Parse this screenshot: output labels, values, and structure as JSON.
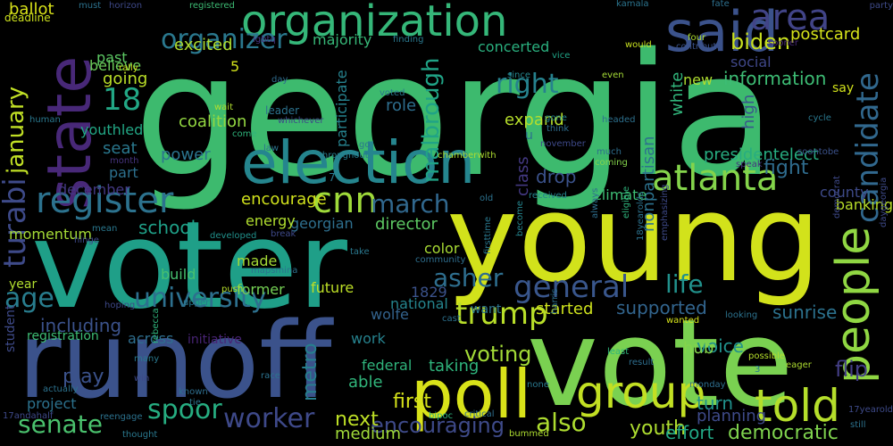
{
  "words": [
    {
      "text": "georgia",
      "color": "#3dba6e",
      "vertical": false
    },
    {
      "text": "young",
      "color": "#d2e21b",
      "vertical": false
    },
    {
      "text": "voter",
      "color": "#1f9f88",
      "vertical": false
    },
    {
      "text": "vote",
      "color": "#7ad151",
      "vertical": false
    },
    {
      "text": "runoff",
      "color": "#3b528b",
      "vertical": false
    },
    {
      "text": "election",
      "color": "#25858e",
      "vertical": false
    },
    {
      "text": "poll",
      "color": "#d8e219",
      "vertical": false
    },
    {
      "text": "organization",
      "color": "#35b779",
      "vertical": false
    },
    {
      "text": "state",
      "color": "#482878",
      "vertical": true
    },
    {
      "text": "said",
      "color": "#3b528b",
      "vertical": false
    },
    {
      "text": "group",
      "color": "#c2df23",
      "vertical": false
    },
    {
      "text": "told",
      "color": "#b5de2b",
      "vertical": false
    },
    {
      "text": "people",
      "color": "#90d743",
      "vertical": true
    },
    {
      "text": "candidate",
      "color": "#31688e",
      "vertical": true
    },
    {
      "text": "atlanta",
      "color": "#84d44b",
      "vertical": false
    },
    {
      "text": "area",
      "color": "#414487",
      "vertical": false
    },
    {
      "text": "register",
      "color": "#2c728e",
      "vertical": false
    },
    {
      "text": "cnn",
      "color": "#9fda3a",
      "vertical": false
    },
    {
      "text": "general",
      "color": "#39568c",
      "vertical": false
    },
    {
      "text": "turabi",
      "color": "#3e4a89",
      "vertical": true
    },
    {
      "text": "trump",
      "color": "#b8de29",
      "vertical": false
    },
    {
      "text": "university",
      "color": "#2d708e",
      "vertical": false
    },
    {
      "text": "worker",
      "color": "#3e4989",
      "vertical": false
    },
    {
      "text": "spoor",
      "color": "#26ad81",
      "vertical": false
    },
    {
      "text": "senate",
      "color": "#4ac16d",
      "vertical": false
    },
    {
      "text": "age",
      "color": "#287d8e",
      "vertical": false
    },
    {
      "text": "right",
      "color": "#26828e",
      "vertical": false
    },
    {
      "text": "organizer",
      "color": "#2a788e",
      "vertical": false
    },
    {
      "text": "life",
      "color": "#21918c",
      "vertical": false
    },
    {
      "text": "also",
      "color": "#addc30",
      "vertical": false
    },
    {
      "text": "march",
      "color": "#31688e",
      "vertical": false
    },
    {
      "text": "biden",
      "color": "#c8e020",
      "vertical": false
    },
    {
      "text": "18",
      "color": "#22a785",
      "vertical": false
    },
    {
      "text": "january",
      "color": "#c0df25",
      "vertical": true
    },
    {
      "text": "malbrough",
      "color": "#20a386",
      "vertical": true
    },
    {
      "text": "asher",
      "color": "#2e6e8e",
      "vertical": false
    },
    {
      "text": "voting",
      "color": "#a2da37",
      "vertical": false
    },
    {
      "text": "encouraging",
      "color": "#3e4a89",
      "vertical": false
    },
    {
      "text": "postcard",
      "color": "#d5e21a",
      "vertical": false
    },
    {
      "text": "information",
      "color": "#3dbc74",
      "vertical": false
    },
    {
      "text": "sunrise",
      "color": "#2c728e",
      "vertical": false
    },
    {
      "text": "supported",
      "color": "#32658e",
      "vertical": false
    },
    {
      "text": "first",
      "color": "#d5e21a",
      "vertical": false
    },
    {
      "text": "next",
      "color": "#bddf26",
      "vertical": false
    },
    {
      "text": "youth",
      "color": "#addc30",
      "vertical": false
    },
    {
      "text": "flip",
      "color": "#433e85",
      "vertical": false
    },
    {
      "text": "effort",
      "color": "#22a785",
      "vertical": false
    },
    {
      "text": "democratic",
      "color": "#7fd34e",
      "vertical": false
    },
    {
      "text": "including",
      "color": "#3b528b",
      "vertical": false
    },
    {
      "text": "started",
      "color": "#cde11d",
      "vertical": false
    },
    {
      "text": "fight",
      "color": "#2f6c8e",
      "vertical": false
    },
    {
      "text": "voice",
      "color": "#21918c",
      "vertical": false
    },
    {
      "text": "turn",
      "color": "#20928c",
      "vertical": false
    },
    {
      "text": "metro",
      "color": "#277f8e",
      "vertical": true
    },
    {
      "text": "able",
      "color": "#31b57b",
      "vertical": false
    },
    {
      "text": "taking",
      "color": "#2fb47c",
      "vertical": false
    },
    {
      "text": "play",
      "color": "#3b528b",
      "vertical": false
    },
    {
      "text": "project",
      "color": "#2c728e",
      "vertical": false
    },
    {
      "text": "medium",
      "color": "#a0da39",
      "vertical": false
    },
    {
      "text": "planning",
      "color": "#3e4a89",
      "vertical": false
    },
    {
      "text": "banking",
      "color": "#b8de29",
      "vertical": false
    },
    {
      "text": "encourage",
      "color": "#d0e11c",
      "vertical": false
    },
    {
      "text": "georgian",
      "color": "#2e6f8e",
      "vertical": false
    },
    {
      "text": "director",
      "color": "#5cc863",
      "vertical": false
    },
    {
      "text": "energy",
      "color": "#b0dd2f",
      "vertical": false
    },
    {
      "text": "school",
      "color": "#1fa088",
      "vertical": false
    },
    {
      "text": "momentum",
      "color": "#a5db36",
      "vertical": false
    },
    {
      "text": "coalition",
      "color": "#93d741",
      "vertical": false
    },
    {
      "text": "power",
      "color": "#2b748e",
      "vertical": false
    },
    {
      "text": "seat",
      "color": "#2a788e",
      "vertical": false
    },
    {
      "text": "going",
      "color": "#bade28",
      "vertical": false
    },
    {
      "text": "excited",
      "color": "#addc30",
      "vertical": false
    },
    {
      "text": "believe",
      "color": "#6ccd5a",
      "vertical": false
    },
    {
      "text": "past",
      "color": "#5cc863",
      "vertical": false
    },
    {
      "text": "majority",
      "color": "#37b878",
      "vertical": false
    },
    {
      "text": "concerted",
      "color": "#2ab07f",
      "vertical": false
    },
    {
      "text": "participate",
      "color": "#26828e",
      "vertical": true
    },
    {
      "text": "role",
      "color": "#2e6e8e",
      "vertical": false
    },
    {
      "text": "expand",
      "color": "#b5de2b",
      "vertical": false
    },
    {
      "text": "white",
      "color": "#31b57b",
      "vertical": true
    },
    {
      "text": "high",
      "color": "#39568c",
      "vertical": true
    },
    {
      "text": "new",
      "color": "#addc30",
      "vertical": false
    },
    {
      "text": "social",
      "color": "#3f4788",
      "vertical": false
    },
    {
      "text": "presidentelect",
      "color": "#27ad81",
      "vertical": false
    },
    {
      "text": "nonpartisan",
      "color": "#2c728e",
      "vertical": true
    },
    {
      "text": "class",
      "color": "#443983",
      "vertical": true
    },
    {
      "text": "drop",
      "color": "#3b528b",
      "vertical": false
    },
    {
      "text": "climate",
      "color": "#3dbc74",
      "vertical": false
    },
    {
      "text": "county",
      "color": "#3e4a89",
      "vertical": false
    },
    {
      "text": "color",
      "color": "#a8db34",
      "vertical": false
    },
    {
      "text": "1829",
      "color": "#3b528b",
      "vertical": false
    },
    {
      "text": "wolfe",
      "color": "#33638d",
      "vertical": false
    },
    {
      "text": "national",
      "color": "#25858e",
      "vertical": false
    },
    {
      "text": "want",
      "color": "#2b748e",
      "vertical": false
    },
    {
      "text": "build",
      "color": "#46c06f",
      "vertical": false
    },
    {
      "text": "made",
      "color": "#a5db36",
      "vertical": false
    },
    {
      "text": "former",
      "color": "#75d054",
      "vertical": false
    },
    {
      "text": "future",
      "color": "#bddf26",
      "vertical": false
    },
    {
      "text": "year",
      "color": "#b0dd2f",
      "vertical": false
    },
    {
      "text": "registration",
      "color": "#3dbc74",
      "vertical": false
    },
    {
      "text": "across",
      "color": "#2e6e8e",
      "vertical": false
    },
    {
      "text": "initiative",
      "color": "#482475",
      "vertical": false
    },
    {
      "text": "work",
      "color": "#26828e",
      "vertical": false
    },
    {
      "text": "federal",
      "color": "#2fb47c",
      "vertical": false
    },
    {
      "text": "hub",
      "color": "#84d44b",
      "vertical": false
    },
    {
      "text": "december",
      "color": "#443983",
      "vertical": false
    },
    {
      "text": "part",
      "color": "#2d708e",
      "vertical": false
    },
    {
      "text": "youthled",
      "color": "#22a785",
      "vertical": false
    },
    {
      "text": "ballot",
      "color": "#d8e219",
      "vertical": false
    },
    {
      "text": "deadline",
      "color": "#cde11d",
      "vertical": false
    },
    {
      "text": "must",
      "color": "#2c728e",
      "vertical": false
    },
    {
      "text": "horizon",
      "color": "#3e4989",
      "vertical": false
    },
    {
      "text": "registered",
      "color": "#3dbc74",
      "vertical": false
    },
    {
      "text": "kamala",
      "color": "#2b748e",
      "vertical": false
    },
    {
      "text": "fate",
      "color": "#2d708e",
      "vertical": false
    },
    {
      "text": "say",
      "color": "#d2e21b",
      "vertical": false
    },
    {
      "text": "party",
      "color": "#3e4a89",
      "vertical": false
    },
    {
      "text": "would",
      "color": "#c8e020",
      "vertical": false
    },
    {
      "text": "four",
      "color": "#addc30",
      "vertical": false
    },
    {
      "text": "contribute",
      "color": "#3b528b",
      "vertical": false
    },
    {
      "text": "sooner",
      "color": "#482878",
      "vertical": false
    },
    {
      "text": "lgbtq",
      "color": "#46337e",
      "vertical": false
    },
    {
      "text": "finding",
      "color": "#2a788e",
      "vertical": false
    },
    {
      "text": "vice",
      "color": "#20a486",
      "vertical": false
    },
    {
      "text": "since",
      "color": "#25858e",
      "vertical": false
    },
    {
      "text": "even",
      "color": "#a5db36",
      "vertical": false
    },
    {
      "text": "rally",
      "color": "#cde11d",
      "vertical": false
    },
    {
      "text": "day",
      "color": "#2f6c8e",
      "vertical": false
    },
    {
      "text": "human",
      "color": "#2a788e",
      "vertical": false
    },
    {
      "text": "wait",
      "color": "#b0dd2f",
      "vertical": false
    },
    {
      "text": "whichever",
      "color": "#3e4989",
      "vertical": false
    },
    {
      "text": "come",
      "color": "#2fb47c",
      "vertical": false
    },
    {
      "text": "leader",
      "color": "#2c728e",
      "vertical": false
    },
    {
      "text": "voted",
      "color": "#2a788e",
      "vertical": false
    },
    {
      "text": "gone",
      "color": "#25858e",
      "vertical": false
    },
    {
      "text": "think",
      "color": "#2e6e8e",
      "vertical": false
    },
    {
      "text": "headed",
      "color": "#2d708e",
      "vertical": false
    },
    {
      "text": "cycle",
      "color": "#2a788e",
      "vertical": false
    },
    {
      "text": "go",
      "color": "#2a788e",
      "vertical": false
    },
    {
      "text": "law",
      "color": "#2c728e",
      "vertical": false
    },
    {
      "text": "november",
      "color": "#3e4989",
      "vertical": false
    },
    {
      "text": "month",
      "color": "#46337e",
      "vertical": false
    },
    {
      "text": "throughout",
      "color": "#287d8e",
      "vertical": false
    },
    {
      "text": "chamberwith",
      "color": "#addc30",
      "vertical": false
    },
    {
      "text": "much",
      "color": "#2e6e8e",
      "vertical": false
    },
    {
      "text": "coming",
      "color": "#84d44b",
      "vertical": false
    },
    {
      "text": "soontobe",
      "color": "#3b528b",
      "vertical": false
    },
    {
      "text": "speak",
      "color": "#46337e",
      "vertical": false
    },
    {
      "text": "received",
      "color": "#25858e",
      "vertical": false
    },
    {
      "text": "old",
      "color": "#2c728e",
      "vertical": false
    },
    {
      "text": "always",
      "color": "#2e6e8e",
      "vertical": true
    },
    {
      "text": "eligible",
      "color": "#2fb47c",
      "vertical": true
    },
    {
      "text": "democrat",
      "color": "#3e4989",
      "vertical": true
    },
    {
      "text": "daygeorgia",
      "color": "#3e4a89",
      "vertical": true
    },
    {
      "text": "mean",
      "color": "#2a788e",
      "vertical": false
    },
    {
      "text": "hinge",
      "color": "#3e4989",
      "vertical": false
    },
    {
      "text": "developed",
      "color": "#21918c",
      "vertical": false
    },
    {
      "text": "break",
      "color": "#3e4989",
      "vertical": false
    },
    {
      "text": "take",
      "color": "#2a788e",
      "vertical": false
    },
    {
      "text": "mapsmina",
      "color": "#2c728e",
      "vertical": false
    },
    {
      "text": "push",
      "color": "#b5de2b",
      "vertical": false
    },
    {
      "text": "community",
      "color": "#2e6e8e",
      "vertical": false
    },
    {
      "text": "firsttime",
      "color": "#2a788e",
      "vertical": true
    },
    {
      "text": "become",
      "color": "#25858e",
      "vertical": true
    },
    {
      "text": "18yearolds",
      "color": "#2c728e",
      "vertical": true
    },
    {
      "text": "emphasizing",
      "color": "#3e4a89",
      "vertical": true
    },
    {
      "text": "wanted",
      "color": "#d5e21a",
      "vertical": false
    },
    {
      "text": "looking",
      "color": "#2c728e",
      "vertical": false
    },
    {
      "text": "least",
      "color": "#2fb47c",
      "vertical": false
    },
    {
      "text": "result",
      "color": "#2e6e8e",
      "vertical": false
    },
    {
      "text": "possible",
      "color": "#b5de2b",
      "vertical": false
    },
    {
      "text": "3",
      "color": "#2a788e",
      "vertical": false
    },
    {
      "text": "eager",
      "color": "#addc30",
      "vertical": false
    },
    {
      "text": "harris",
      "color": "#2d708e",
      "vertical": true
    },
    {
      "text": "cast",
      "color": "#2c728e",
      "vertical": false
    },
    {
      "text": "many",
      "color": "#2a788e",
      "vertical": false
    },
    {
      "text": "win",
      "color": "#3e4989",
      "vertical": false
    },
    {
      "text": "rebecca",
      "color": "#2fb47c",
      "vertical": true
    },
    {
      "text": "known",
      "color": "#2e6e8e",
      "vertical": false
    },
    {
      "text": "tie",
      "color": "#2c728e",
      "vertical": false
    },
    {
      "text": "race",
      "color": "#2c728e",
      "vertical": false
    },
    {
      "text": "none",
      "color": "#2a788e",
      "vertical": false
    },
    {
      "text": "monday",
      "color": "#2e6e8e",
      "vertical": false
    },
    {
      "text": "actually",
      "color": "#2c728e",
      "vertical": false
    },
    {
      "text": "17andahalf",
      "color": "#3e4989",
      "vertical": false
    },
    {
      "text": "thought",
      "color": "#2a788e",
      "vertical": false
    },
    {
      "text": "reengage",
      "color": "#2c728e",
      "vertical": false
    },
    {
      "text": "bipoc",
      "color": "#2fb47c",
      "vertical": false
    },
    {
      "text": "critical",
      "color": "#2e6e8e",
      "vertical": false
    },
    {
      "text": "bummed",
      "color": "#addc30",
      "vertical": false
    },
    {
      "text": "still",
      "color": "#2c728e",
      "vertical": false
    },
    {
      "text": "17yearold",
      "color": "#3e4a89",
      "vertical": false
    },
    {
      "text": "upper",
      "color": "#2a788e",
      "vertical": false
    },
    {
      "text": "hoping",
      "color": "#3e4989",
      "vertical": false
    },
    {
      "text": "student",
      "color": "#3e4a89",
      "vertical": true
    },
    {
      "text": "5",
      "color": "#d2e21b",
      "vertical": false
    },
    {
      "text": "u",
      "color": "#2c728e",
      "vertical": false
    },
    {
      "text": "7",
      "color": "#2a788e",
      "vertical": false
    }
  ]
}
